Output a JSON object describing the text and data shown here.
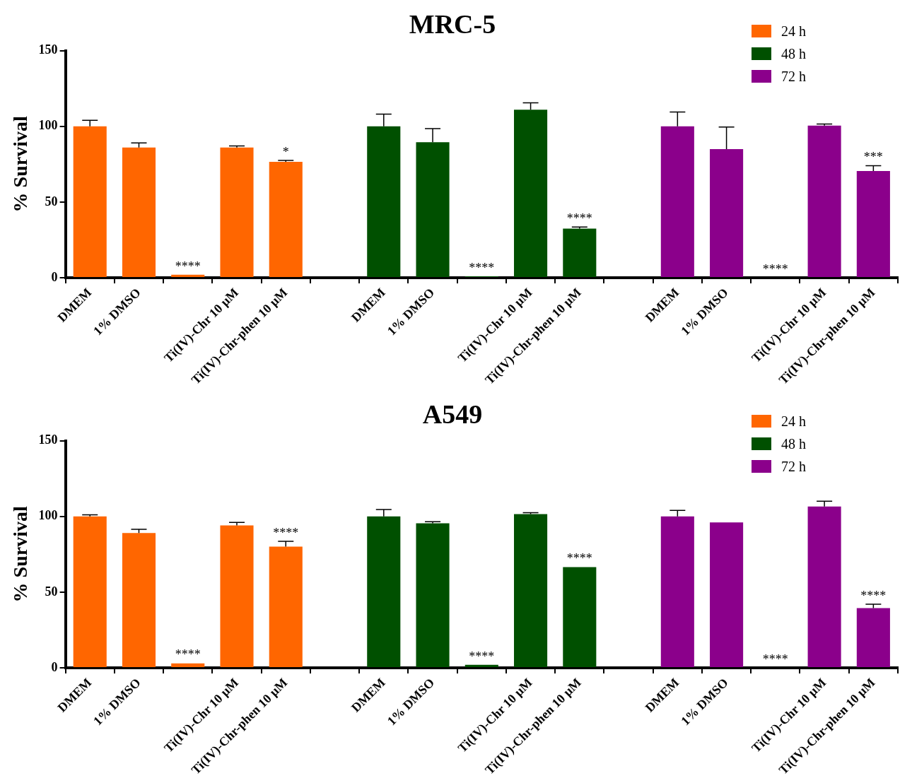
{
  "chart_data": [
    {
      "type": "bar",
      "title": "MRC-5",
      "ylabel": "% Survival",
      "legend": "top right",
      "ylim": [
        0,
        150
      ],
      "yticks": [
        0,
        50,
        100,
        150
      ],
      "categories": [
        "DMEM",
        "1% DMSO",
        null,
        "Ti(IV)-Chr 10 µM",
        "Ti(IV)-Chr-phen 10 µM",
        null,
        "DMEM",
        "1% DMSO",
        null,
        "Ti(IV)-Chr 10 µM",
        "Ti(IV)-Chr-phen 10 µM",
        null,
        "DMEM",
        "1% DMSO",
        null,
        "Ti(IV)-Chr 10 µM",
        "Ti(IV)-Chr-phen 10 µM"
      ],
      "series": [
        {
          "name": "24 h",
          "color": "#ff6600",
          "values": [
            100,
            86,
            2,
            86,
            76.5,
            null,
            null,
            null,
            null,
            null,
            null,
            null,
            null,
            null,
            null,
            null,
            null
          ],
          "errors": [
            4,
            3,
            null,
            1,
            1,
            null,
            null,
            null,
            null,
            null,
            null,
            null,
            null,
            null,
            null,
            null,
            null
          ],
          "value_labels": [
            null,
            null,
            "****",
            null,
            "*",
            null,
            null,
            null,
            null,
            null,
            null,
            null,
            null,
            null,
            null,
            null,
            null
          ]
        },
        {
          "name": "48 h",
          "color": "#005000",
          "values": [
            null,
            null,
            null,
            null,
            null,
            null,
            100,
            89.5,
            1,
            111,
            32.5,
            null,
            null,
            null,
            null,
            null,
            null
          ],
          "errors": [
            null,
            null,
            null,
            null,
            null,
            null,
            8,
            9,
            null,
            4.5,
            1,
            null,
            null,
            null,
            null,
            null,
            null
          ],
          "value_labels": [
            null,
            null,
            null,
            null,
            null,
            null,
            null,
            null,
            "****",
            null,
            "****",
            null,
            null,
            null,
            null,
            null,
            null
          ]
        },
        {
          "name": "72 h",
          "color": "#8b008b",
          "values": [
            null,
            null,
            null,
            null,
            null,
            null,
            null,
            null,
            null,
            null,
            null,
            null,
            100,
            85,
            0,
            100.5,
            70.5
          ],
          "errors": [
            null,
            null,
            null,
            null,
            null,
            null,
            null,
            null,
            null,
            null,
            null,
            null,
            9.5,
            14.5,
            null,
            1,
            3.5
          ],
          "value_labels": [
            null,
            null,
            null,
            null,
            null,
            null,
            null,
            null,
            null,
            null,
            null,
            null,
            null,
            null,
            "****",
            null,
            "***"
          ]
        }
      ]
    },
    {
      "type": "bar",
      "title": "A549",
      "ylabel": "% Survival",
      "legend": "top right",
      "ylim": [
        0,
        150
      ],
      "yticks": [
        0,
        50,
        100,
        150
      ],
      "categories": [
        "DMEM",
        "1% DMSO",
        null,
        "Ti(IV)-Chr 10 µM",
        "Ti(IV)-Chr-phen 10 µM",
        null,
        "DMEM",
        "1% DMSO",
        null,
        "Ti(IV)-Chr 10 µM",
        "Ti(IV)-Chr-phen 10 µM",
        null,
        "DMEM",
        "1% DMSO",
        null,
        "Ti(IV)-Chr 10 µM",
        "Ti(IV)-Chr-phen 10 µM"
      ],
      "series": [
        {
          "name": "24 h",
          "color": "#ff6600",
          "values": [
            100,
            89,
            3,
            94,
            80,
            null,
            null,
            null,
            null,
            null,
            null,
            null,
            null,
            null,
            null,
            null,
            null
          ],
          "errors": [
            1,
            2.5,
            null,
            2,
            3.5,
            null,
            null,
            null,
            null,
            null,
            null,
            null,
            null,
            null,
            null,
            null,
            null
          ],
          "value_labels": [
            null,
            null,
            "****",
            null,
            "****",
            null,
            null,
            null,
            null,
            null,
            null,
            null,
            null,
            null,
            null,
            null,
            null
          ]
        },
        {
          "name": "48 h",
          "color": "#005000",
          "values": [
            null,
            null,
            null,
            null,
            null,
            null,
            100,
            95.5,
            2,
            101.5,
            66.5,
            null,
            null,
            null,
            null,
            null,
            null
          ],
          "errors": [
            null,
            null,
            null,
            null,
            null,
            null,
            4.5,
            1,
            null,
            1,
            null,
            null,
            null,
            null,
            null,
            null,
            null
          ],
          "value_labels": [
            null,
            null,
            null,
            null,
            null,
            null,
            null,
            null,
            "****",
            null,
            "****",
            null,
            null,
            null,
            null,
            null,
            null
          ]
        },
        {
          "name": "72 h",
          "color": "#8b008b",
          "values": [
            null,
            null,
            null,
            null,
            null,
            null,
            null,
            null,
            null,
            null,
            null,
            null,
            100,
            96,
            0,
            106.5,
            39.5
          ],
          "errors": [
            null,
            null,
            null,
            null,
            null,
            null,
            null,
            null,
            null,
            null,
            null,
            null,
            4,
            null,
            null,
            3.5,
            2.5
          ],
          "value_labels": [
            null,
            null,
            null,
            null,
            null,
            null,
            null,
            null,
            null,
            null,
            null,
            null,
            null,
            null,
            "****",
            null,
            "****"
          ]
        }
      ]
    }
  ]
}
